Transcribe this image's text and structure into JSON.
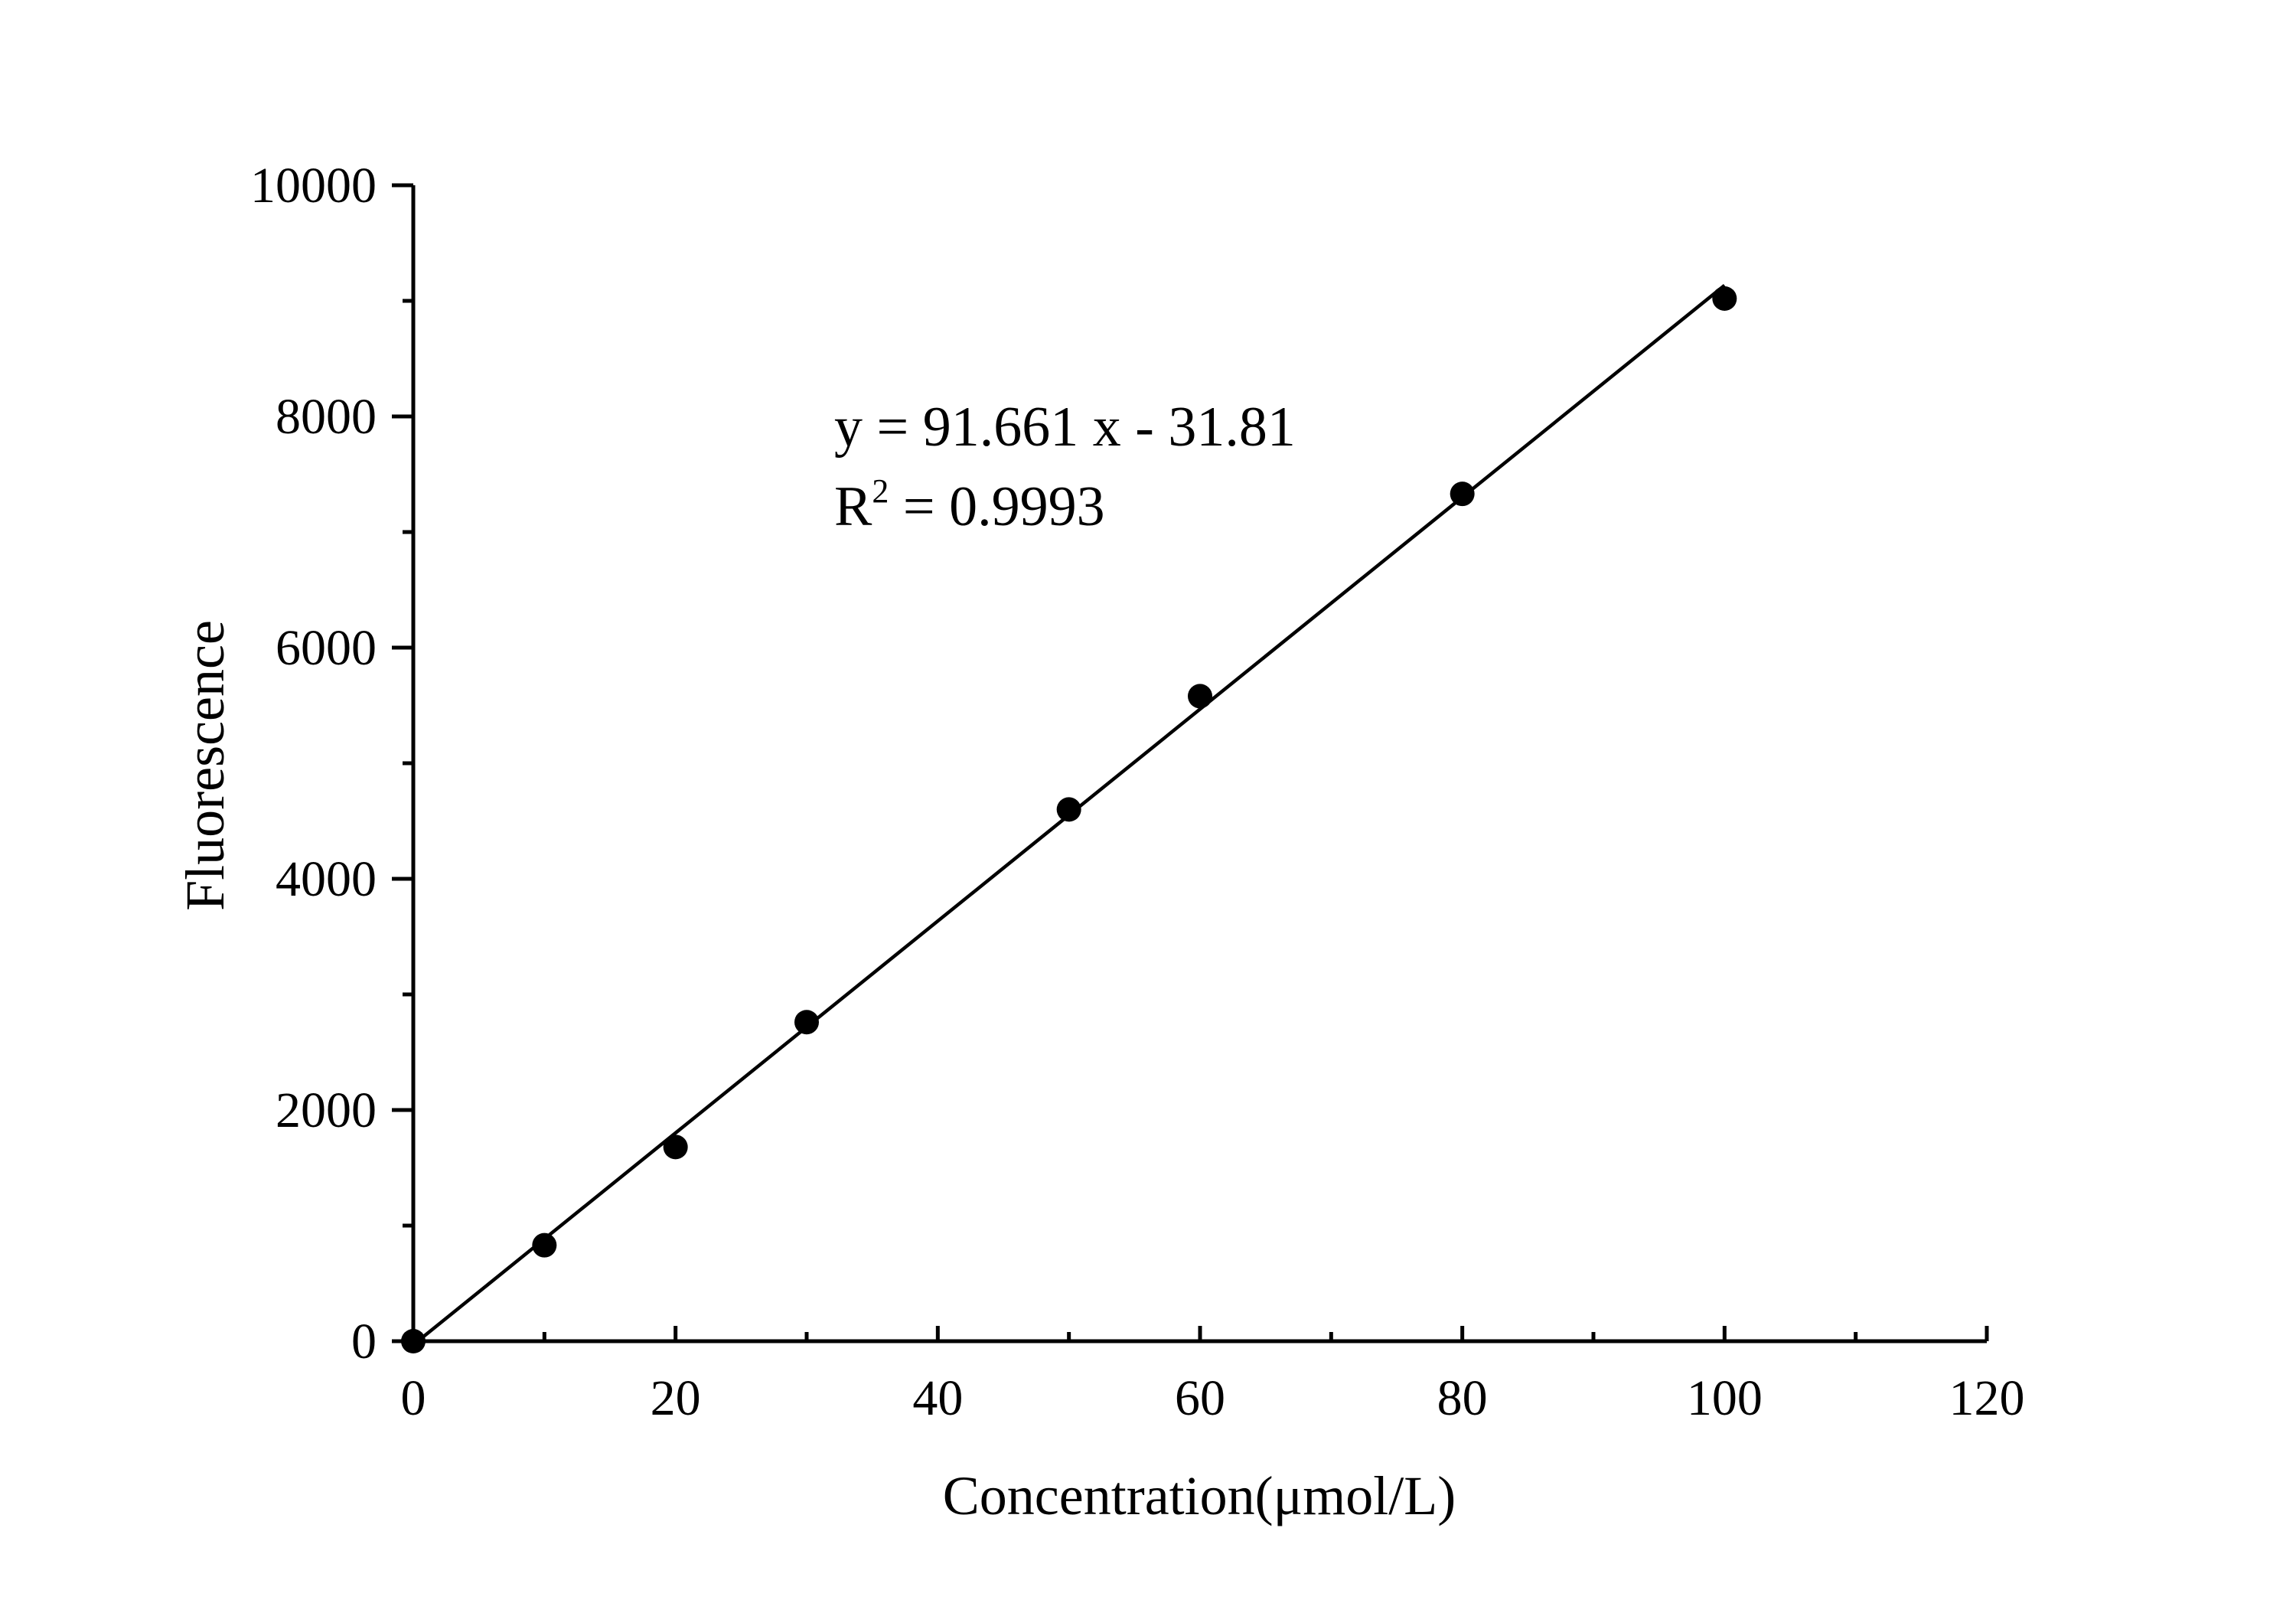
{
  "chart_data": {
    "type": "scatter",
    "title": "",
    "xlabel": "Concentration(μmol/L)",
    "ylabel": "Fluorescence",
    "xlim": [
      0,
      120
    ],
    "ylim": [
      0,
      10000
    ],
    "x_ticks": [
      "0",
      "20",
      "40",
      "60",
      "80",
      "100",
      "120"
    ],
    "y_ticks": [
      "0",
      "2000",
      "4000",
      "6000",
      "8000",
      "10000"
    ],
    "x_minor_step": 10,
    "y_minor_step": 1000,
    "grid": false,
    "legend": "none",
    "colors": {
      "points": "#000000",
      "line": "#000000"
    },
    "series": [
      {
        "x": [
          0,
          10,
          20,
          30,
          50,
          60,
          80,
          100
        ],
        "y": [
          0,
          830,
          1680,
          2760,
          4600,
          5580,
          7330,
          9020
        ]
      }
    ],
    "fit": {
      "slope": 91.661,
      "intercept": -31.81,
      "x_range": [
        0,
        100
      ]
    },
    "annotation": {
      "equation": "y = 91.661 x - 31.81",
      "r2_prefix": "R",
      "r2_exponent": "2",
      "r2_value": " = 0.9993"
    }
  }
}
